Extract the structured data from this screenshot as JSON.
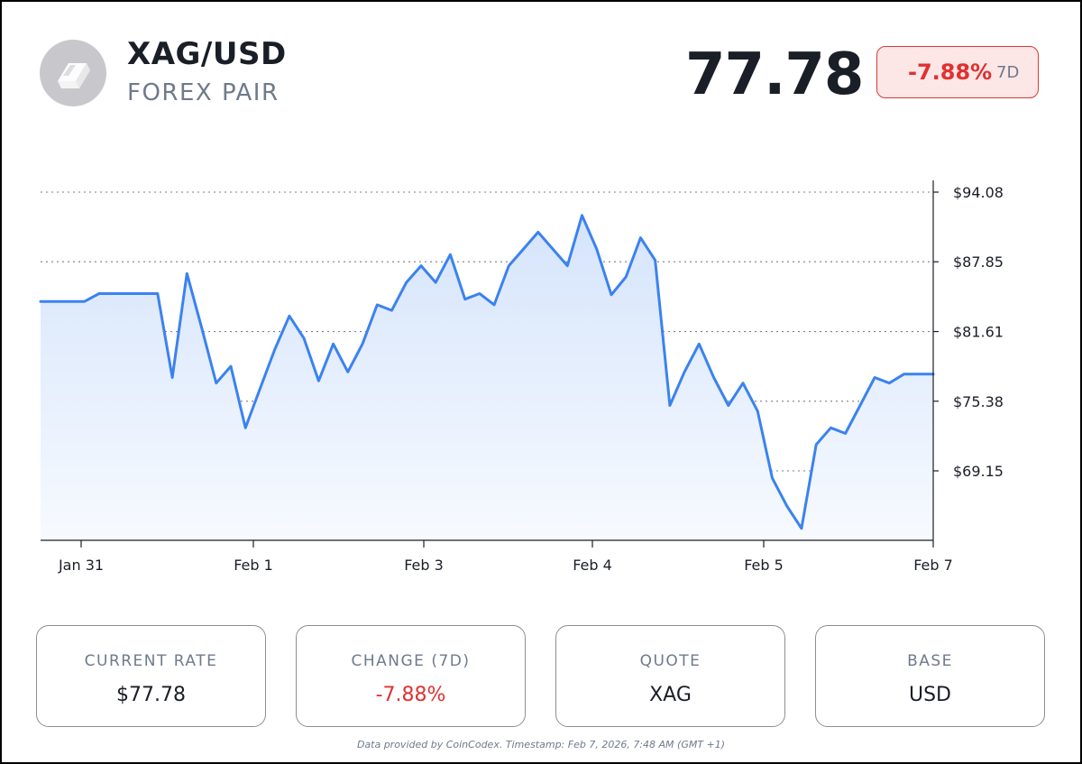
{
  "header": {
    "icon": "silver-bar-icon",
    "pair": "XAG/USD",
    "subtitle": "FOREX PAIR",
    "price": "77.78",
    "change_pct": "-7.88%",
    "change_period": "7D"
  },
  "colors": {
    "line": "#3b82f0",
    "fill_top": "#d5e4fb",
    "fill_bottom": "#f7faff",
    "negative": "#e03131",
    "negative_bg": "#fde6e6",
    "text_dark": "#1a1e27",
    "text_muted": "#6e7a8c"
  },
  "chart_data": {
    "type": "area",
    "x_ticks": [
      "Jan 31",
      "Feb 1",
      "Feb 3",
      "Feb 4",
      "Feb 5",
      "Feb 7"
    ],
    "y_ticks": [
      "$94.08",
      "$87.85",
      "$81.61",
      "$75.38",
      "$69.15"
    ],
    "y_tick_values": [
      94.08,
      87.85,
      81.61,
      75.38,
      69.15
    ],
    "ylim": [
      63.0,
      94.08
    ],
    "grid": "horizontal dotted",
    "y_axis_side": "right",
    "series": [
      {
        "values": [
          84.3,
          84.3,
          84.3,
          84.3,
          85.0,
          85.0,
          85.0,
          85.0,
          85.0,
          77.5,
          86.8,
          82.0,
          77.0,
          78.5,
          73.0,
          76.5,
          80.0,
          83.0,
          81.0,
          77.2,
          80.5,
          78.0,
          80.5,
          84.0,
          83.5,
          86.0,
          87.5,
          86.0,
          88.5,
          84.5,
          85.0,
          84.0,
          87.5,
          89.0,
          90.5,
          89.0,
          87.5,
          92.0,
          89.0,
          84.9,
          86.5,
          90.0,
          88.0,
          75.0,
          78.0,
          80.5,
          77.5,
          75.0,
          77.0,
          74.5,
          68.5,
          66.0,
          64.0,
          71.5,
          73.0,
          72.5,
          75.0,
          77.5,
          77.0,
          77.8,
          77.8,
          77.8
        ]
      }
    ]
  },
  "cards": [
    {
      "label": "CURRENT RATE",
      "value": "$77.78"
    },
    {
      "label": "CHANGE (7D)",
      "value": "-7.88%"
    },
    {
      "label": "QUOTE",
      "value": "XAG"
    },
    {
      "label": "BASE",
      "value": "USD"
    }
  ],
  "footer": "Data provided by CoinCodex. Timestamp: Feb 7, 2026, 7:48 AM (GMT +1)"
}
